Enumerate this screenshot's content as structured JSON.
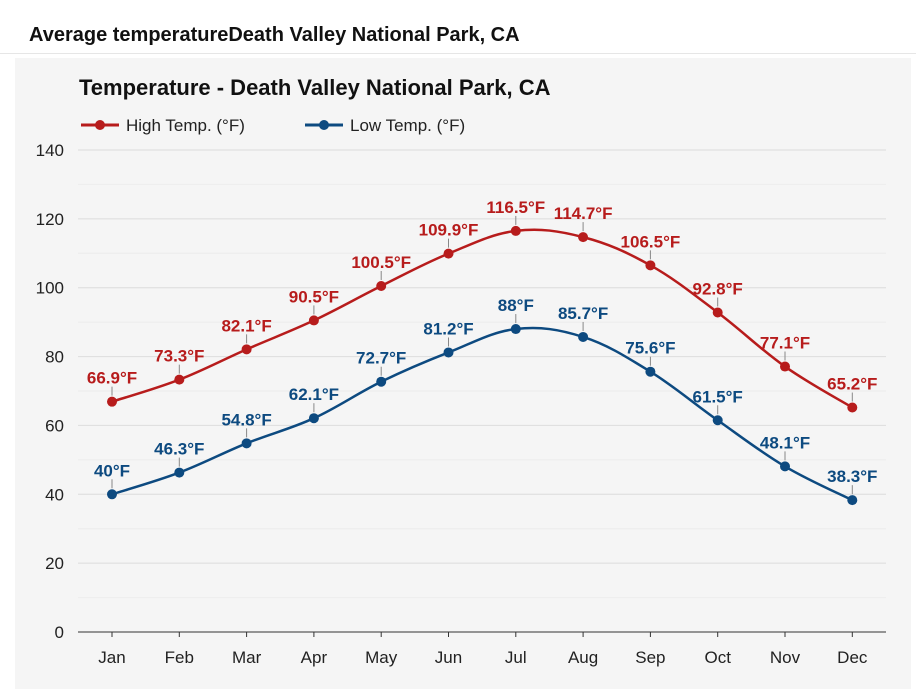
{
  "page": {
    "header": "Average temperatureDeath Valley National Park, CA"
  },
  "chart_data": {
    "type": "line",
    "title": "Temperature - Death Valley National Park, CA",
    "xlabel": "",
    "ylabel": "",
    "ylim": [
      0,
      140
    ],
    "yticks": [
      "0",
      "20",
      "40",
      "60",
      "80",
      "100",
      "120",
      "140"
    ],
    "categories": [
      "Jan",
      "Feb",
      "Mar",
      "Apr",
      "May",
      "Jun",
      "Jul",
      "Aug",
      "Sep",
      "Oct",
      "Nov",
      "Dec"
    ],
    "legend_position": "top-left",
    "grid": true,
    "series": [
      {
        "name": "High Temp. (°F)",
        "color": "#b71c1c",
        "values": [
          66.9,
          73.3,
          82.1,
          90.5,
          100.5,
          109.9,
          116.5,
          114.7,
          106.5,
          92.8,
          77.1,
          65.2
        ],
        "labels": [
          "66.9°F",
          "73.3°F",
          "82.1°F",
          "90.5°F",
          "100.5°F",
          "109.9°F",
          "116.5°F",
          "114.7°F",
          "106.5°F",
          "92.8°F",
          "77.1°F",
          "65.2°F"
        ]
      },
      {
        "name": "Low Temp. (°F)",
        "color": "#0d4a80",
        "values": [
          40,
          46.3,
          54.8,
          62.1,
          72.7,
          81.2,
          88,
          85.7,
          75.6,
          61.5,
          48.1,
          38.3
        ],
        "labels": [
          "40°F",
          "46.3°F",
          "54.8°F",
          "62.1°F",
          "72.7°F",
          "81.2°F",
          "88°F",
          "85.7°F",
          "75.6°F",
          "61.5°F",
          "48.1°F",
          "38.3°F"
        ]
      }
    ]
  }
}
